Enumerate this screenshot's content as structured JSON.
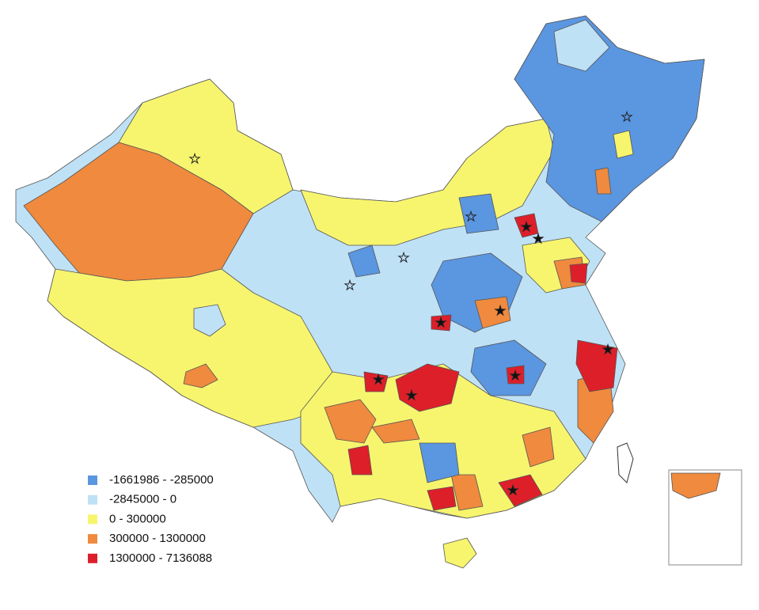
{
  "legend": {
    "items": [
      {
        "label": "-1661986 - -285000",
        "color": "#5b96e0"
      },
      {
        "label": "-2845000 - 0",
        "color": "#bfe1f6"
      },
      {
        "label": "0 - 300000",
        "color": "#f7f56e"
      },
      {
        "label": "300000 - 1300000",
        "color": "#ef8a3e"
      },
      {
        "label": "1300000 - 7136088",
        "color": "#dd1f2a"
      }
    ]
  }
}
